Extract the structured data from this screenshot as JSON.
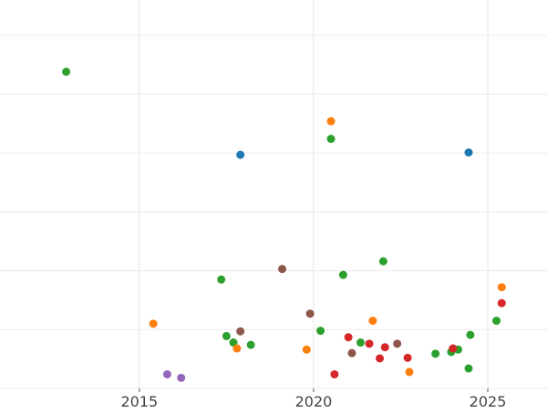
{
  "chart_data": {
    "type": "scatter",
    "title": "",
    "xlabel": "",
    "ylabel": "",
    "x_ticks": [
      2015,
      2020,
      2025
    ],
    "xlim": [
      2011,
      2026.7
    ],
    "ylim": [
      0,
      6.6
    ],
    "grid": true,
    "legend": "none",
    "colors": {
      "blue": "#1f77b4",
      "orange": "#ff7f0e",
      "green": "#2ca02c",
      "red": "#d62728",
      "purple": "#9467bd",
      "brown": "#8c564b"
    },
    "points": [
      {
        "x": 2012.9,
        "y": 5.38,
        "color": "green"
      },
      {
        "x": 2017.9,
        "y": 3.97,
        "color": "blue"
      },
      {
        "x": 2024.45,
        "y": 4.01,
        "color": "blue"
      },
      {
        "x": 2020.5,
        "y": 4.54,
        "color": "orange"
      },
      {
        "x": 2020.5,
        "y": 4.24,
        "color": "green"
      },
      {
        "x": 2017.35,
        "y": 1.85,
        "color": "green"
      },
      {
        "x": 2019.1,
        "y": 2.03,
        "color": "brown"
      },
      {
        "x": 2020.85,
        "y": 1.93,
        "color": "green"
      },
      {
        "x": 2022.0,
        "y": 2.16,
        "color": "green"
      },
      {
        "x": 2025.4,
        "y": 1.72,
        "color": "orange"
      },
      {
        "x": 2025.4,
        "y": 1.45,
        "color": "red"
      },
      {
        "x": 2015.4,
        "y": 1.1,
        "color": "orange"
      },
      {
        "x": 2019.9,
        "y": 1.27,
        "color": "brown"
      },
      {
        "x": 2021.7,
        "y": 1.15,
        "color": "orange"
      },
      {
        "x": 2025.25,
        "y": 1.15,
        "color": "green"
      },
      {
        "x": 2017.5,
        "y": 0.89,
        "color": "green"
      },
      {
        "x": 2017.9,
        "y": 0.97,
        "color": "brown"
      },
      {
        "x": 2017.7,
        "y": 0.78,
        "color": "green"
      },
      {
        "x": 2017.8,
        "y": 0.68,
        "color": "orange"
      },
      {
        "x": 2018.2,
        "y": 0.74,
        "color": "green"
      },
      {
        "x": 2020.2,
        "y": 0.98,
        "color": "green"
      },
      {
        "x": 2019.8,
        "y": 0.66,
        "color": "orange"
      },
      {
        "x": 2021.0,
        "y": 0.87,
        "color": "red"
      },
      {
        "x": 2021.35,
        "y": 0.78,
        "color": "green"
      },
      {
        "x": 2021.6,
        "y": 0.76,
        "color": "red"
      },
      {
        "x": 2021.1,
        "y": 0.6,
        "color": "brown"
      },
      {
        "x": 2022.05,
        "y": 0.7,
        "color": "red"
      },
      {
        "x": 2021.9,
        "y": 0.51,
        "color": "red"
      },
      {
        "x": 2022.4,
        "y": 0.76,
        "color": "brown"
      },
      {
        "x": 2022.7,
        "y": 0.52,
        "color": "red"
      },
      {
        "x": 2022.75,
        "y": 0.28,
        "color": "orange"
      },
      {
        "x": 2023.5,
        "y": 0.59,
        "color": "green"
      },
      {
        "x": 2023.95,
        "y": 0.62,
        "color": "green"
      },
      {
        "x": 2024.15,
        "y": 0.66,
        "color": "green"
      },
      {
        "x": 2024.0,
        "y": 0.68,
        "color": "red"
      },
      {
        "x": 2024.5,
        "y": 0.91,
        "color": "green"
      },
      {
        "x": 2024.45,
        "y": 0.34,
        "color": "green"
      },
      {
        "x": 2020.6,
        "y": 0.24,
        "color": "red"
      },
      {
        "x": 2015.8,
        "y": 0.24,
        "color": "purple"
      },
      {
        "x": 2016.2,
        "y": 0.18,
        "color": "purple"
      }
    ]
  }
}
